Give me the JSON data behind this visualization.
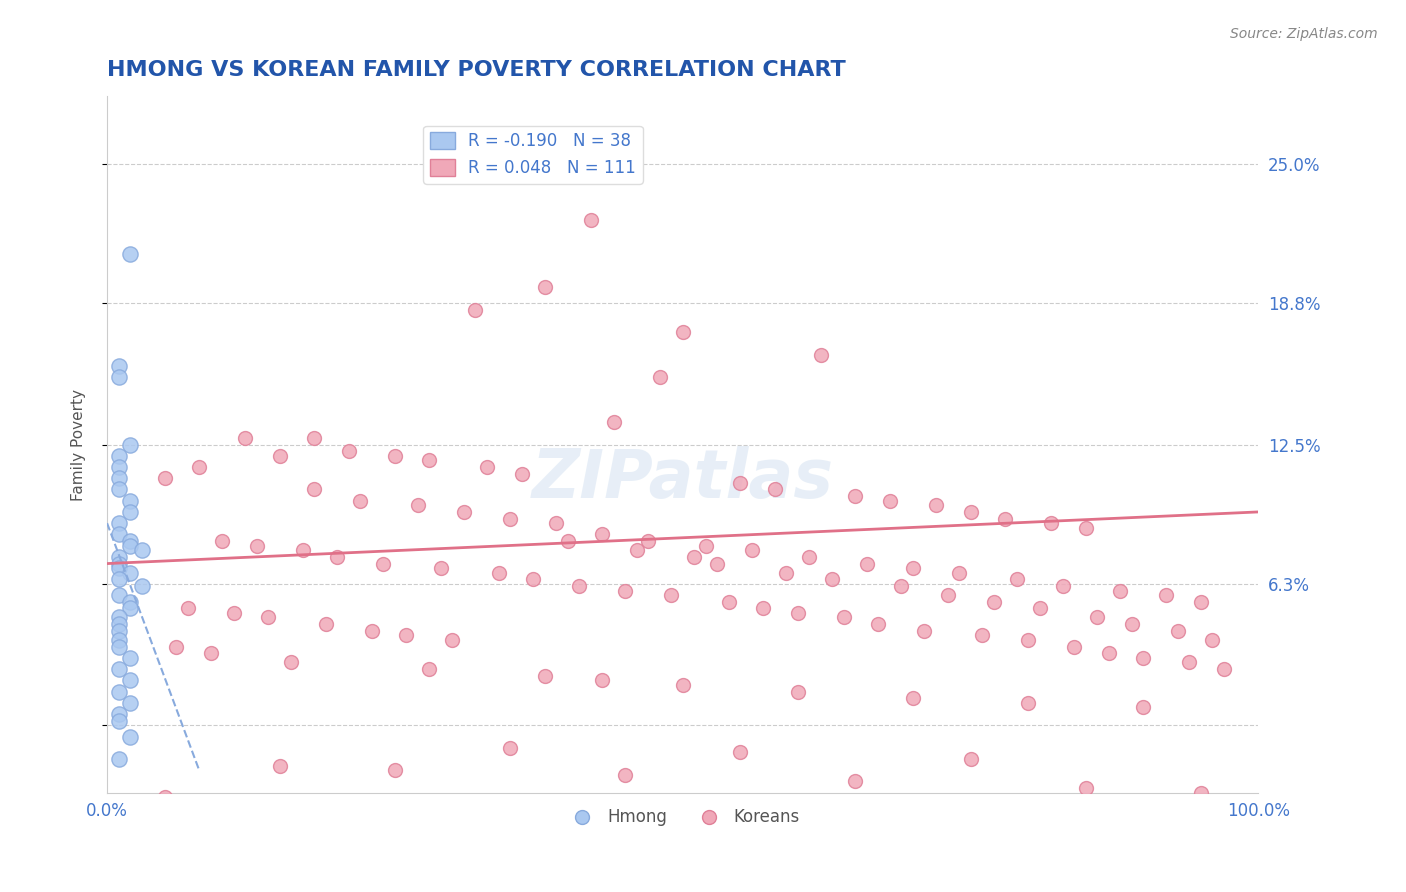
{
  "title": "HMONG VS KOREAN FAMILY POVERTY CORRELATION CHART",
  "source": "Source: ZipAtlas.com",
  "xlabel": "",
  "ylabel": "Family Poverty",
  "xlim": [
    0.0,
    1.0
  ],
  "ylim": [
    -0.03,
    0.28
  ],
  "yticks": [
    0.0,
    0.063,
    0.125,
    0.188,
    0.25
  ],
  "ytick_labels": [
    "",
    "6.3%",
    "12.5%",
    "18.8%",
    "25.0%"
  ],
  "xtick_labels": [
    "0.0%",
    "100.0%"
  ],
  "title_color": "#2255aa",
  "title_fontsize": 16,
  "watermark": "ZIPatlas",
  "hmong_color": "#aac8f0",
  "hmong_edge": "#88aadd",
  "korean_color": "#f0a8b8",
  "korean_edge": "#e08098",
  "hmong_line_color": "#88aadd",
  "korean_line_color": "#e07088",
  "legend_r_hmong": "R = -0.190",
  "legend_n_hmong": "N = 38",
  "legend_r_korean": "R = 0.048",
  "legend_n_korean": "N = 111",
  "hmong_x": [
    0.02,
    0.01,
    0.01,
    0.02,
    0.01,
    0.01,
    0.01,
    0.01,
    0.02,
    0.02,
    0.01,
    0.01,
    0.02,
    0.02,
    0.03,
    0.01,
    0.01,
    0.01,
    0.02,
    0.01,
    0.03,
    0.01,
    0.02,
    0.02,
    0.01,
    0.01,
    0.01,
    0.01,
    0.01,
    0.02,
    0.01,
    0.02,
    0.01,
    0.02,
    0.01,
    0.01,
    0.02,
    0.01
  ],
  "hmong_y": [
    0.21,
    0.16,
    0.155,
    0.125,
    0.12,
    0.115,
    0.11,
    0.105,
    0.1,
    0.095,
    0.09,
    0.085,
    0.082,
    0.08,
    0.078,
    0.075,
    0.072,
    0.07,
    0.068,
    0.065,
    0.062,
    0.058,
    0.055,
    0.052,
    0.048,
    0.045,
    0.042,
    0.038,
    0.035,
    0.03,
    0.025,
    0.02,
    0.015,
    0.01,
    0.005,
    0.002,
    -0.005,
    -0.015
  ],
  "korean_x": [
    0.42,
    0.38,
    0.32,
    0.5,
    0.48,
    0.44,
    0.62,
    0.18,
    0.21,
    0.25,
    0.28,
    0.33,
    0.36,
    0.55,
    0.58,
    0.65,
    0.68,
    0.72,
    0.75,
    0.78,
    0.82,
    0.85,
    0.12,
    0.15,
    0.08,
    0.05,
    0.18,
    0.22,
    0.27,
    0.31,
    0.35,
    0.39,
    0.43,
    0.47,
    0.52,
    0.56,
    0.61,
    0.66,
    0.7,
    0.74,
    0.79,
    0.83,
    0.88,
    0.92,
    0.95,
    0.1,
    0.13,
    0.17,
    0.2,
    0.24,
    0.29,
    0.34,
    0.37,
    0.41,
    0.45,
    0.49,
    0.54,
    0.57,
    0.6,
    0.64,
    0.67,
    0.71,
    0.76,
    0.8,
    0.84,
    0.87,
    0.9,
    0.94,
    0.97,
    0.07,
    0.11,
    0.14,
    0.19,
    0.23,
    0.26,
    0.3,
    0.4,
    0.46,
    0.51,
    0.53,
    0.59,
    0.63,
    0.69,
    0.73,
    0.77,
    0.81,
    0.86,
    0.89,
    0.93,
    0.96,
    0.06,
    0.09,
    0.16,
    0.28,
    0.38,
    0.43,
    0.5,
    0.6,
    0.7,
    0.8,
    0.9,
    0.35,
    0.55,
    0.75,
    0.15,
    0.25,
    0.45,
    0.65,
    0.85,
    0.95,
    0.05
  ],
  "korean_y": [
    0.225,
    0.195,
    0.185,
    0.175,
    0.155,
    0.135,
    0.165,
    0.128,
    0.122,
    0.12,
    0.118,
    0.115,
    0.112,
    0.108,
    0.105,
    0.102,
    0.1,
    0.098,
    0.095,
    0.092,
    0.09,
    0.088,
    0.128,
    0.12,
    0.115,
    0.11,
    0.105,
    0.1,
    0.098,
    0.095,
    0.092,
    0.09,
    0.085,
    0.082,
    0.08,
    0.078,
    0.075,
    0.072,
    0.07,
    0.068,
    0.065,
    0.062,
    0.06,
    0.058,
    0.055,
    0.082,
    0.08,
    0.078,
    0.075,
    0.072,
    0.07,
    0.068,
    0.065,
    0.062,
    0.06,
    0.058,
    0.055,
    0.052,
    0.05,
    0.048,
    0.045,
    0.042,
    0.04,
    0.038,
    0.035,
    0.032,
    0.03,
    0.028,
    0.025,
    0.052,
    0.05,
    0.048,
    0.045,
    0.042,
    0.04,
    0.038,
    0.082,
    0.078,
    0.075,
    0.072,
    0.068,
    0.065,
    0.062,
    0.058,
    0.055,
    0.052,
    0.048,
    0.045,
    0.042,
    0.038,
    0.035,
    0.032,
    0.028,
    0.025,
    0.022,
    0.02,
    0.018,
    0.015,
    0.012,
    0.01,
    0.008,
    -0.01,
    -0.012,
    -0.015,
    -0.018,
    -0.02,
    -0.022,
    -0.025,
    -0.028,
    -0.03,
    -0.032
  ],
  "hmong_trend_x": [
    0.0,
    0.08
  ],
  "hmong_trend_y_start": 0.09,
  "hmong_trend_y_end": -0.02,
  "korean_trend_x": [
    0.0,
    1.0
  ],
  "korean_trend_y_start": 0.072,
  "korean_trend_y_end": 0.095,
  "background_color": "#ffffff",
  "grid_color": "#cccccc",
  "axis_label_color": "#4477cc",
  "tick_label_color": "#4477cc"
}
